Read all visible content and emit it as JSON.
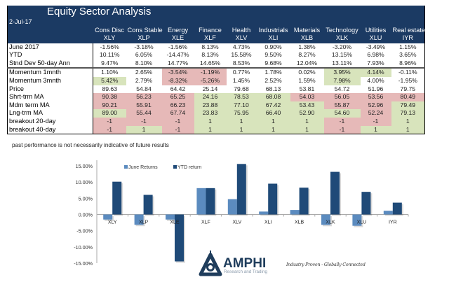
{
  "header": {
    "title": "Equity Sector  Analysis",
    "date": "2-Jul-17"
  },
  "columns": [
    {
      "name": "Cons Disc",
      "ticker": "XLY"
    },
    {
      "name": "Cons Stable",
      "ticker": "XLP"
    },
    {
      "name": "Energy",
      "ticker": "XLE"
    },
    {
      "name": "Finance",
      "ticker": "XLF"
    },
    {
      "name": "Health",
      "ticker": "XLV"
    },
    {
      "name": "Industrials",
      "ticker": "XLI"
    },
    {
      "name": "Materials",
      "ticker": "XLB"
    },
    {
      "name": "Technology",
      "ticker": "XLK"
    },
    {
      "name": "Utilities",
      "ticker": "XLU"
    },
    {
      "name": "Real estate",
      "ticker": "IYR"
    }
  ],
  "rows_top": [
    {
      "label": "June 2017",
      "values": [
        "-1.56%",
        "-3.18%",
        "-1.56%",
        "8.13%",
        "4.73%",
        "0.90%",
        "1.38%",
        "-3.20%",
        "-3.49%",
        "1.15%"
      ],
      "shade": [
        "",
        "",
        "",
        "",
        "",
        "",
        "",
        "",
        "",
        ""
      ]
    },
    {
      "label": "YTD",
      "values": [
        "10.11%",
        "6.05%",
        "-14.47%",
        "8.13%",
        "15.58%",
        "9.50%",
        "8.27%",
        "13.15%",
        "6.98%",
        "3.65%"
      ],
      "shade": [
        "",
        "",
        "",
        "",
        "",
        "",
        "",
        "",
        "",
        ""
      ]
    },
    {
      "label": "Stnd Dev 50-day Ann",
      "values": [
        "9.47%",
        "8.10%",
        "14.77%",
        "14.65%",
        "8.53%",
        "9.68%",
        "12.04%",
        "13.11%",
        "7.93%",
        "8.96%"
      ],
      "shade": [
        "",
        "",
        "",
        "",
        "",
        "",
        "",
        "",
        "",
        ""
      ]
    }
  ],
  "rows_bottom": [
    {
      "label": "Momentum 1mnth",
      "values": [
        "1.10%",
        "2.65%",
        "-3.54%",
        "-1.19%",
        "0.77%",
        "1.78%",
        "0.02%",
        "3.95%",
        "4.14%",
        "-0.11%"
      ],
      "shade": [
        "",
        "",
        "r",
        "r",
        "",
        "",
        "",
        "g",
        "g",
        ""
      ]
    },
    {
      "label": "Momentum 3mnth",
      "values": [
        "5.42%",
        "2.79%",
        "-8.32%",
        "-5.26%",
        "1.45%",
        "2.52%",
        "1.59%",
        "7.98%",
        "4.00%",
        "-1.95%"
      ],
      "shade": [
        "g",
        "",
        "r",
        "r",
        "",
        "",
        "",
        "g",
        "",
        ""
      ]
    },
    {
      "label": "Price",
      "values": [
        "89.63",
        "54.84",
        "64.42",
        "25.14",
        "79.68",
        "68.13",
        "53.81",
        "54.72",
        "51.96",
        "79.75"
      ],
      "shade": [
        "",
        "",
        "",
        "",
        "",
        "",
        "",
        "",
        "",
        ""
      ]
    },
    {
      "label": "Shrt-trm MA",
      "values": [
        "90.38",
        "56.23",
        "65.25",
        "24.16",
        "78.53",
        "68.08",
        "54.03",
        "56.05",
        "53.56",
        "80.49"
      ],
      "shade": [
        "r",
        "r",
        "r",
        "g",
        "g",
        "g",
        "r",
        "r",
        "r",
        "r"
      ]
    },
    {
      "label": "Mdm term MA",
      "values": [
        "90.21",
        "55.91",
        "66.23",
        "23.88",
        "77.10",
        "67.42",
        "53.43",
        "55.87",
        "52.96",
        "79.49"
      ],
      "shade": [
        "r",
        "r",
        "r",
        "g",
        "g",
        "g",
        "g",
        "r",
        "r",
        "g"
      ]
    },
    {
      "label": "Lng-trm MA",
      "values": [
        "89.00",
        "55.44",
        "67.74",
        "23.83",
        "75.95",
        "66.40",
        "52.90",
        "54.60",
        "52.24",
        "79.13"
      ],
      "shade": [
        "g",
        "r",
        "r",
        "g",
        "g",
        "g",
        "g",
        "g",
        "r",
        "g"
      ]
    },
    {
      "label": "breakout 20-day",
      "values": [
        "-1",
        "-1",
        "-1",
        "1",
        "1",
        "1",
        "1",
        "-1",
        "-1",
        "1"
      ],
      "shade": [
        "r",
        "r",
        "r",
        "g",
        "g",
        "g",
        "g",
        "r",
        "r",
        "g"
      ]
    },
    {
      "label": "breakout 40-day",
      "values": [
        "-1",
        "1",
        "-1",
        "1",
        "1",
        "1",
        "1",
        "-1",
        "1",
        "1"
      ],
      "shade": [
        "r",
        "g",
        "r",
        "g",
        "g",
        "g",
        "g",
        "r",
        "g",
        "g"
      ]
    }
  ],
  "disclaimer": "past performance is not necessarily indicative of future results",
  "colors": {
    "header_bg": "#1b3a63",
    "positive_shade": "#d8e4bc",
    "negative_shade": "#e6b9b8",
    "june_series": "#5b8bbf",
    "ytd_series": "#1f4a78"
  },
  "logo": {
    "name": "AMPHI",
    "subtitle": "Research and Trading",
    "tagline": "Industry Proven - Globally Connected"
  },
  "chart_data": {
    "type": "bar",
    "title": "",
    "xlabel": "",
    "ylabel": "",
    "categories": [
      "XLY",
      "XLP",
      "XLE",
      "XLF",
      "XLV",
      "XLI",
      "XLB",
      "XLK",
      "XLU",
      "IYR"
    ],
    "series": [
      {
        "name": "June Returns",
        "values": [
          -1.56,
          -3.18,
          -1.56,
          8.13,
          4.73,
          0.9,
          1.38,
          -3.2,
          -3.49,
          1.15
        ]
      },
      {
        "name": "YTD return",
        "values": [
          10.11,
          6.05,
          -14.47,
          8.13,
          15.58,
          9.5,
          8.27,
          13.15,
          6.98,
          3.65
        ]
      }
    ],
    "ylim": [
      -15,
      15
    ],
    "yticks": [
      15,
      10,
      5,
      0,
      -5,
      -10,
      -15
    ],
    "ytick_labels": [
      "15.00%",
      "10.00%",
      "5.00%",
      "0.00%",
      "-5.00%",
      "-10.00%",
      "-15.00%"
    ],
    "grid": false,
    "legend": "top-left",
    "unit": "%"
  }
}
